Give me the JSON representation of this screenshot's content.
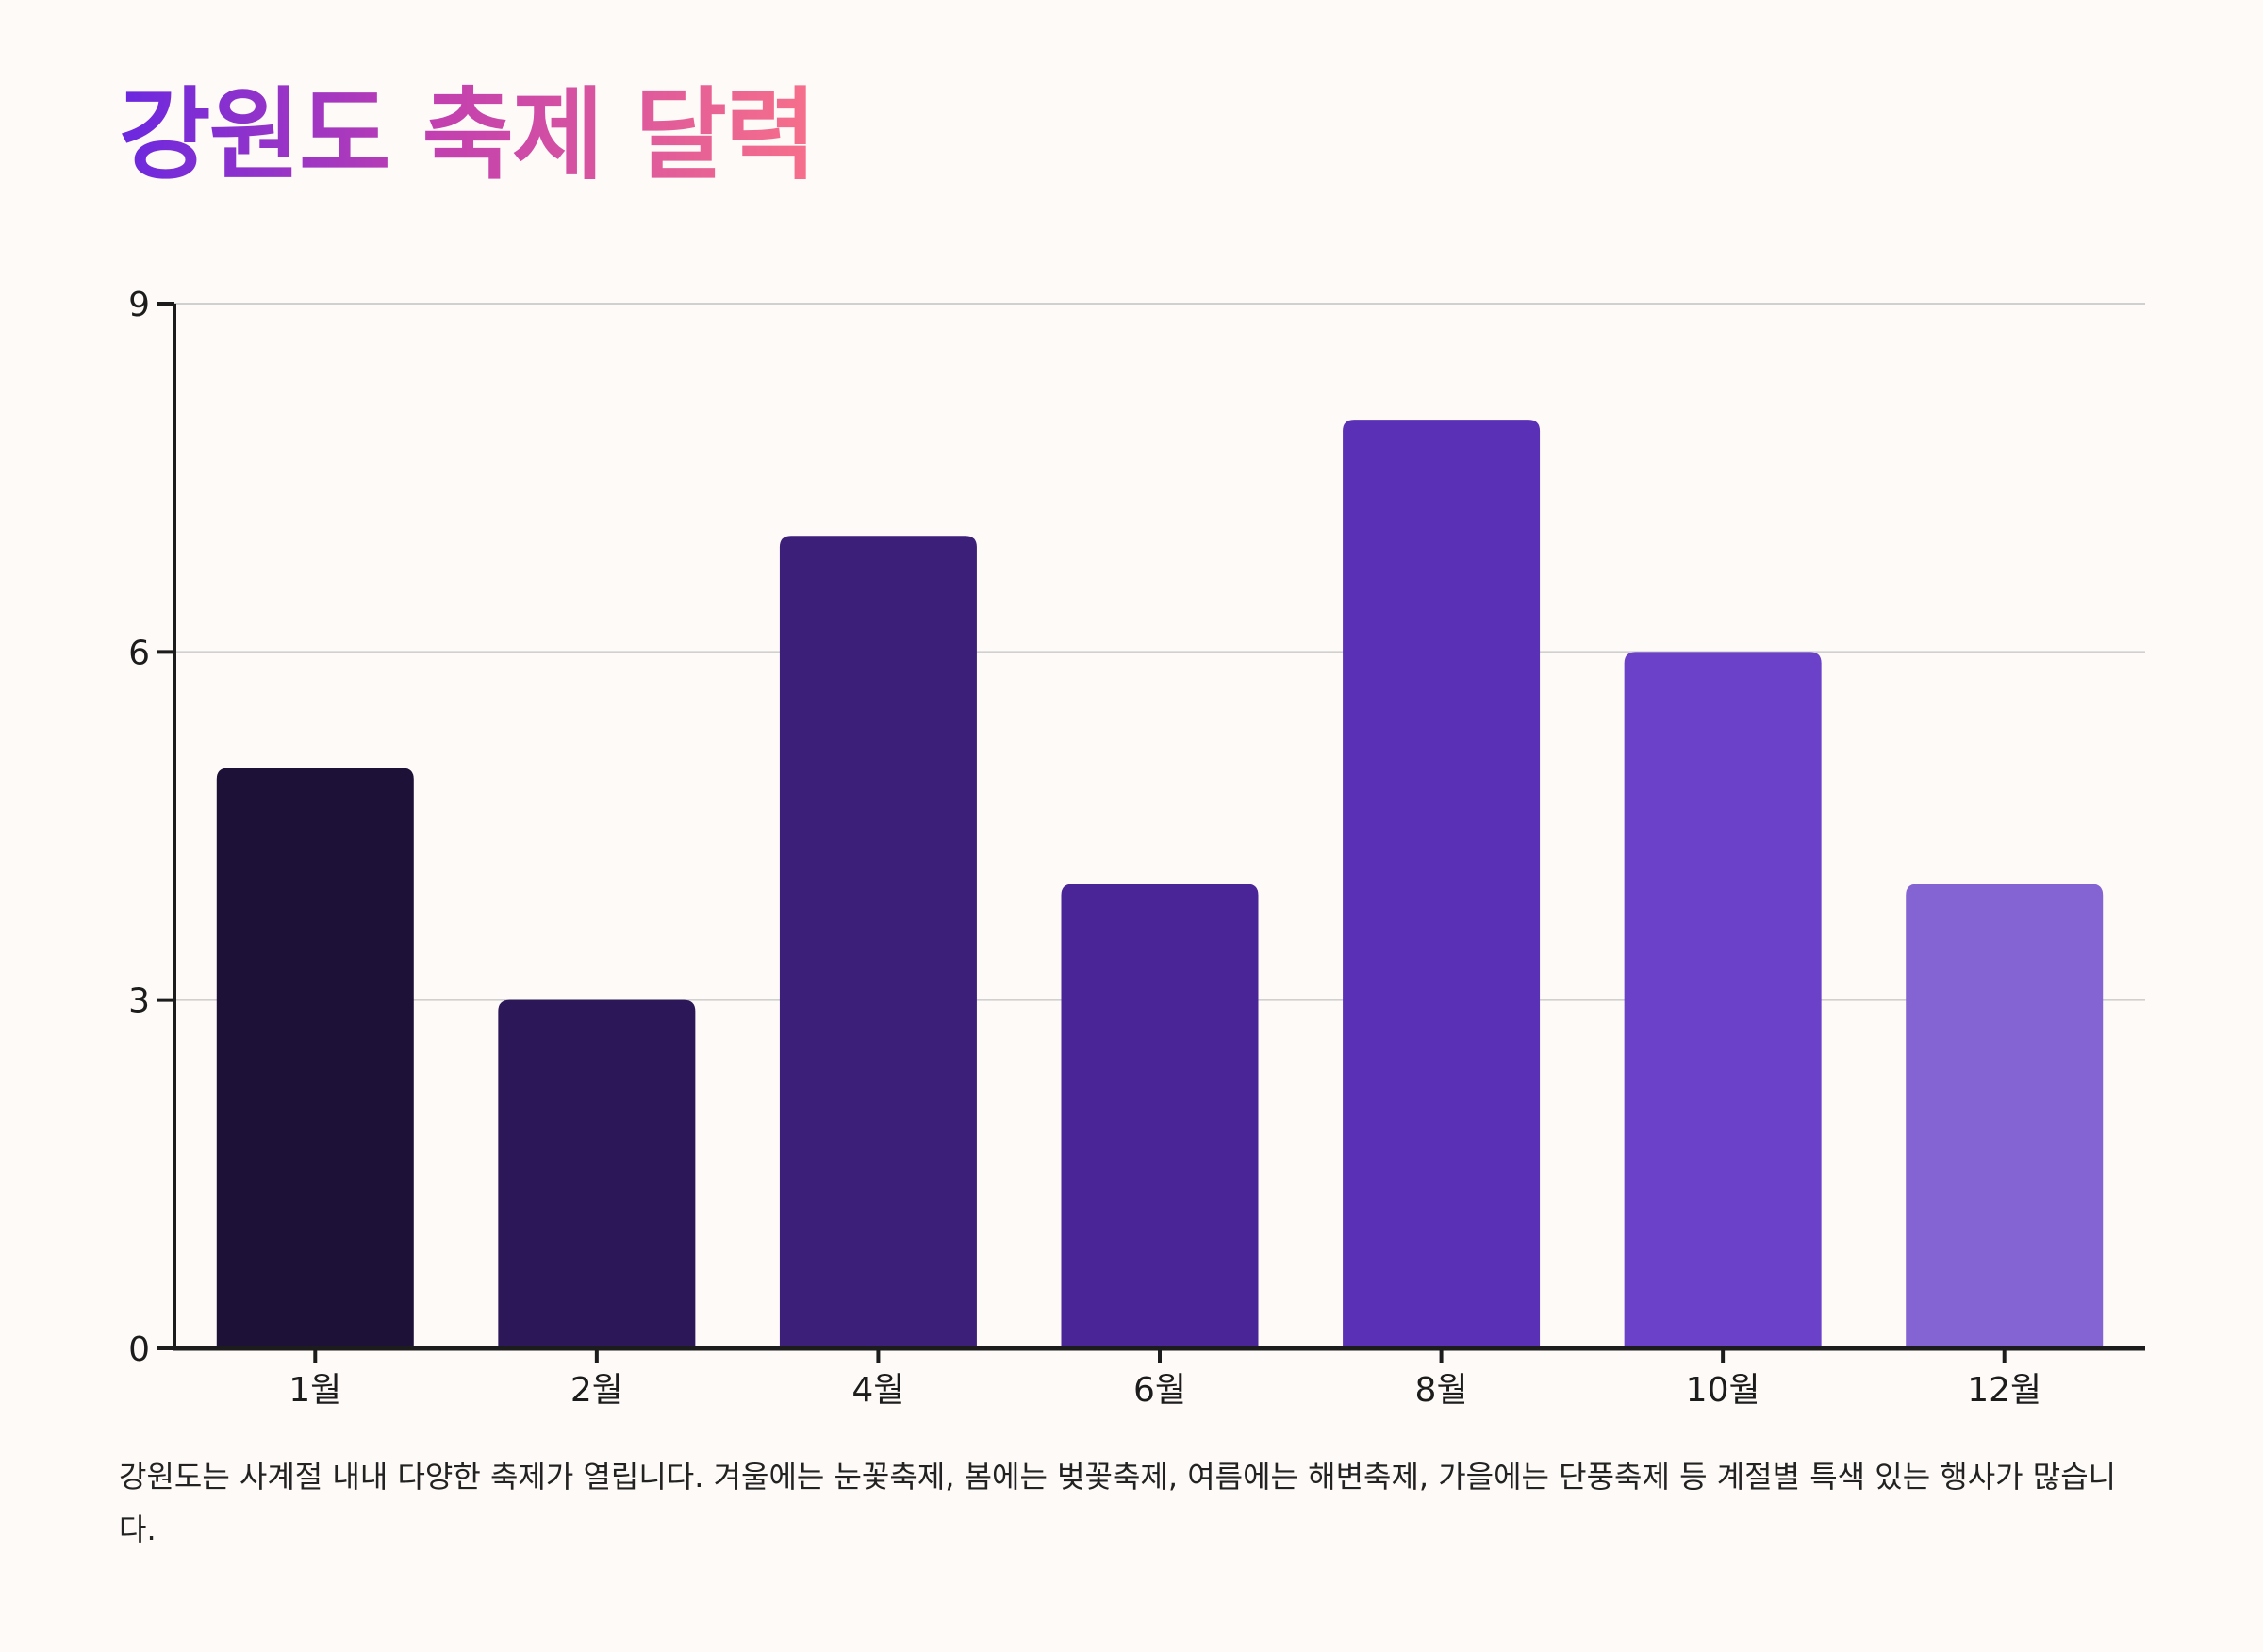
{
  "title": "강원도 축제 달력",
  "description": "강원도는 사계절 내내 다양한 축제가 열립니다. 겨울에는 눈꽃축제, 봄에는 벚꽃축제, 여름에는 해변축제, 가을에는 단풍축제 등 계절별 특색 있는 행사가 많습니다.",
  "colors": {
    "title_gradient": [
      "#6a28e0",
      "#c13fb0",
      "#f7708a"
    ],
    "background": "#fefaf7",
    "axis": "#1c1c1c",
    "grid": "#d0d0d0"
  },
  "chart_data": {
    "type": "bar",
    "categories": [
      "1월",
      "2월",
      "4월",
      "6월",
      "8월",
      "10월",
      "12월"
    ],
    "values": [
      5,
      3,
      7,
      4,
      8,
      6,
      4
    ],
    "bar_colors": [
      "#1d1138",
      "#2c1758",
      "#3b1f78",
      "#4a2597",
      "#5a31b6",
      "#6b41c9",
      "#8463d2"
    ],
    "ylim": [
      0,
      9
    ],
    "yticks": [
      0,
      3,
      6,
      9
    ],
    "grid": true,
    "xlabel": "",
    "ylabel": ""
  }
}
